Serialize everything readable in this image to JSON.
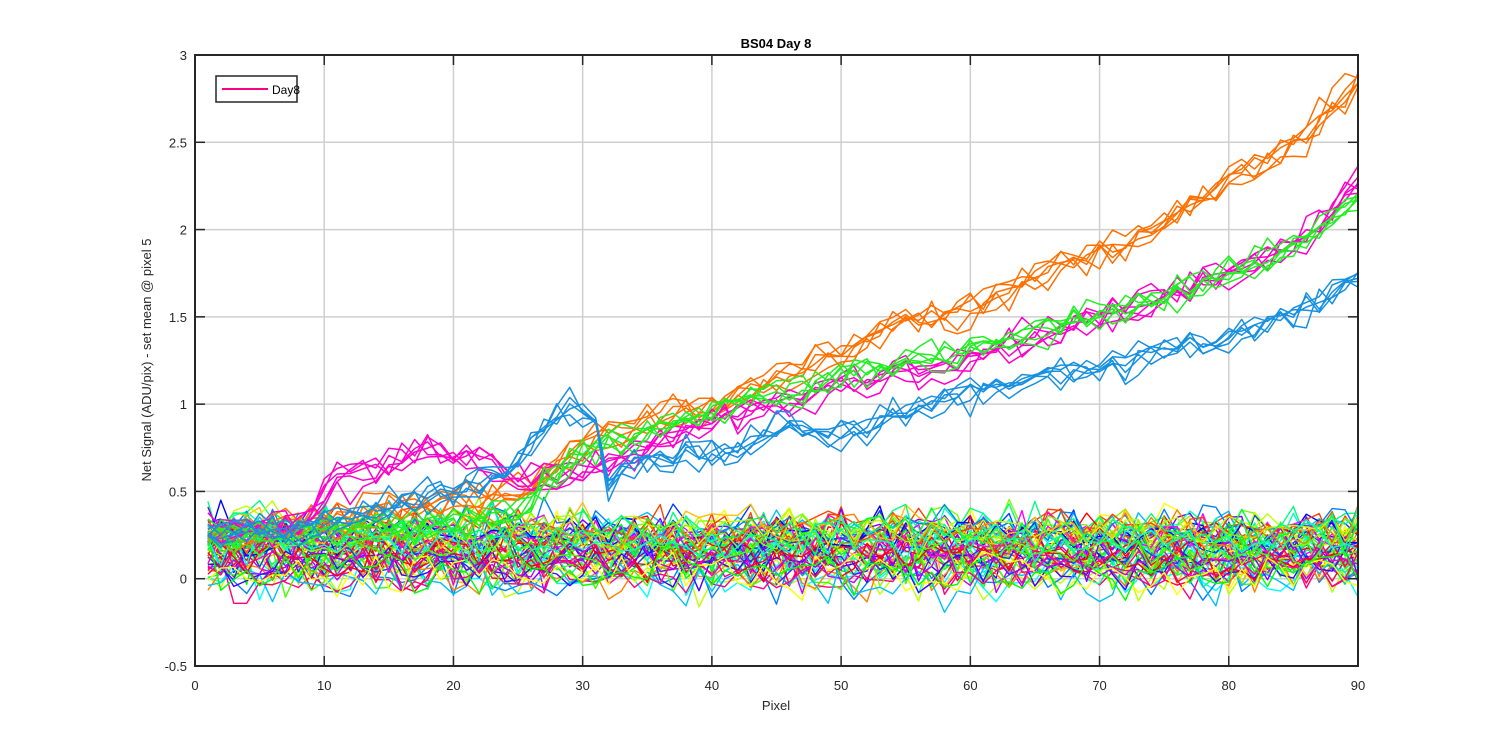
{
  "chart_data": {
    "type": "line",
    "title": "BS04 Day 8",
    "xlabel": "Pixel",
    "ylabel": "Net Signal (ADU/pix) - set mean @ pixel 5",
    "xlim": [
      0,
      90
    ],
    "ylim": [
      -0.5,
      3
    ],
    "xticks": [
      0,
      10,
      20,
      30,
      40,
      50,
      60,
      70,
      80,
      90
    ],
    "yticks": [
      -0.5,
      0,
      0.5,
      1,
      1.5,
      2,
      2.5,
      3
    ],
    "grid": true,
    "legend": {
      "position": "top-left",
      "entries": [
        {
          "label": "Day8",
          "color": "#ff0080"
        }
      ]
    },
    "x": {
      "start": 1,
      "end": 90,
      "step": 1
    },
    "baseline_group": {
      "description_of_values": "approximately flat noisy traces between about -0.2 and 0.5",
      "traces": 60,
      "mean_range": [
        0.0,
        0.3
      ],
      "noise": 0.07,
      "colors": [
        "#ff0000",
        "#ff4000",
        "#ff8000",
        "#ffbf00",
        "#ffff00",
        "#bfff00",
        "#80ff00",
        "#40ff00",
        "#00ff00",
        "#00ff40",
        "#00ff80",
        "#00ffbf",
        "#00ffff",
        "#00bfff",
        "#0080ff",
        "#0040ff",
        "#0000ff",
        "#4000ff",
        "#8000ff",
        "#bf00ff",
        "#ff00ff",
        "#ff00bf",
        "#ff0080",
        "#ff0040"
      ]
    },
    "rising_series": [
      {
        "color": "#ff7000",
        "count": 6,
        "points": [
          [
            1,
            0.25
          ],
          [
            10,
            0.35
          ],
          [
            20,
            0.45
          ],
          [
            25,
            0.5
          ],
          [
            30,
            0.75
          ],
          [
            35,
            0.92
          ],
          [
            40,
            1.0
          ],
          [
            50,
            1.3
          ],
          [
            55,
            1.5
          ],
          [
            60,
            1.55
          ],
          [
            65,
            1.75
          ],
          [
            70,
            1.9
          ],
          [
            75,
            2.05
          ],
          [
            80,
            2.3
          ],
          [
            85,
            2.5
          ],
          [
            90,
            2.85
          ]
        ]
      },
      {
        "color": "#ff00cc",
        "count": 6,
        "points": [
          [
            1,
            0.25
          ],
          [
            8,
            0.3
          ],
          [
            11,
            0.55
          ],
          [
            15,
            0.65
          ],
          [
            19,
            0.75
          ],
          [
            23,
            0.65
          ],
          [
            26,
            0.55
          ],
          [
            30,
            0.6
          ],
          [
            35,
            0.75
          ],
          [
            40,
            0.9
          ],
          [
            50,
            1.1
          ],
          [
            60,
            1.25
          ],
          [
            70,
            1.5
          ],
          [
            75,
            1.6
          ],
          [
            80,
            1.75
          ],
          [
            85,
            1.9
          ],
          [
            90,
            2.25
          ]
        ]
      },
      {
        "color": "#22ee22",
        "count": 6,
        "points": [
          [
            1,
            0.25
          ],
          [
            20,
            0.3
          ],
          [
            25,
            0.4
          ],
          [
            30,
            0.7
          ],
          [
            35,
            0.85
          ],
          [
            40,
            0.95
          ],
          [
            50,
            1.15
          ],
          [
            60,
            1.3
          ],
          [
            70,
            1.5
          ],
          [
            75,
            1.6
          ],
          [
            80,
            1.75
          ],
          [
            85,
            1.9
          ],
          [
            90,
            2.15
          ]
        ]
      },
      {
        "color": "#1890e0",
        "count": 6,
        "points": [
          [
            1,
            0.25
          ],
          [
            10,
            0.3
          ],
          [
            15,
            0.4
          ],
          [
            20,
            0.5
          ],
          [
            24,
            0.6
          ],
          [
            27,
            0.85
          ],
          [
            29,
            1.0
          ],
          [
            31,
            0.9
          ],
          [
            32,
            0.55
          ],
          [
            34,
            0.65
          ],
          [
            38,
            0.7
          ],
          [
            42,
            0.72
          ],
          [
            46,
            0.9
          ],
          [
            50,
            0.8
          ],
          [
            55,
            0.95
          ],
          [
            60,
            1.05
          ],
          [
            65,
            1.15
          ],
          [
            70,
            1.2
          ],
          [
            75,
            1.28
          ],
          [
            80,
            1.38
          ],
          [
            85,
            1.5
          ],
          [
            90,
            1.72
          ]
        ]
      }
    ]
  }
}
